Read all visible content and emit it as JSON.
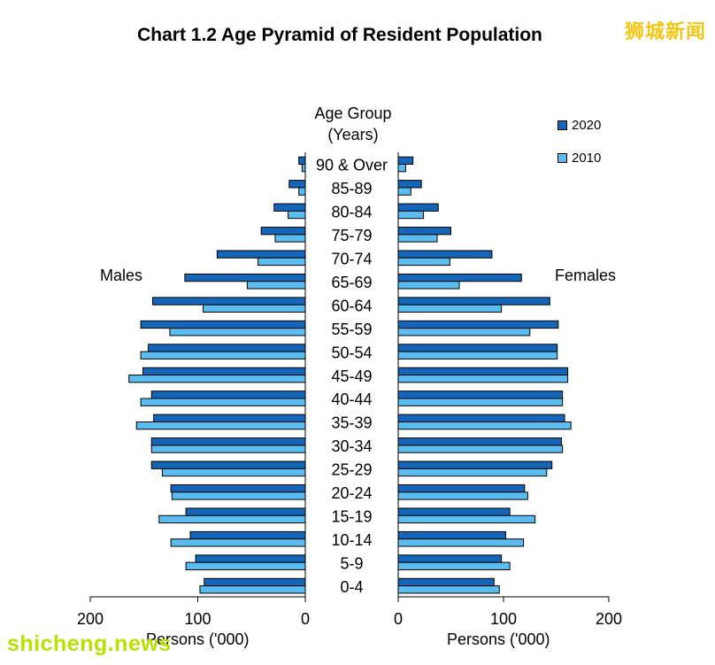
{
  "title": "Chart 1.2  Age Pyramid of Resident Population",
  "watermark_top": "狮城新闻",
  "watermark_bottom": "shicheng.news",
  "colors": {
    "s2020": "#1565b8",
    "s2010": "#5bbcf0",
    "axis": "#000000"
  },
  "chart_data": {
    "type": "bar",
    "orientation": "horizontal-pyramid",
    "title": "Chart 1.2  Age Pyramid of Resident Population",
    "age_axis_label": "Age Group\n(Years)",
    "left_label": "Males",
    "right_label": "Females",
    "xlabel_left": "Persons ('000)",
    "xlabel_right": "Persons ('000)",
    "xlim": [
      0,
      200
    ],
    "ticks_left": [
      "200",
      "100",
      "0"
    ],
    "ticks_right": [
      "0",
      "100",
      "200"
    ],
    "legend": [
      "2020",
      "2010"
    ],
    "categories": [
      "90 & Over",
      "85-89",
      "80-84",
      "75-79",
      "70-74",
      "65-69",
      "60-64",
      "55-59",
      "50-54",
      "45-49",
      "40-44",
      "35-39",
      "30-34",
      "25-29",
      "20-24",
      "15-19",
      "10-14",
      "5-9",
      "0-4"
    ],
    "series": [
      {
        "name": "2020",
        "sex": "Males",
        "values": [
          6,
          15,
          29,
          41,
          82,
          112,
          142,
          153,
          146,
          151,
          143,
          141,
          143,
          143,
          125,
          111,
          107,
          102,
          94
        ]
      },
      {
        "name": "2010",
        "sex": "Males",
        "values": [
          3,
          6,
          16,
          28,
          44,
          54,
          95,
          126,
          153,
          164,
          153,
          157,
          143,
          133,
          124,
          136,
          125,
          111,
          98
        ]
      },
      {
        "name": "2020",
        "sex": "Females",
        "values": [
          14,
          22,
          38,
          50,
          89,
          117,
          144,
          152,
          151,
          161,
          156,
          158,
          155,
          146,
          120,
          106,
          102,
          98,
          91
        ]
      },
      {
        "name": "2010",
        "sex": "Females",
        "values": [
          7,
          12,
          24,
          37,
          49,
          58,
          98,
          125,
          151,
          161,
          156,
          164,
          156,
          141,
          123,
          130,
          119,
          106,
          96
        ]
      }
    ]
  }
}
